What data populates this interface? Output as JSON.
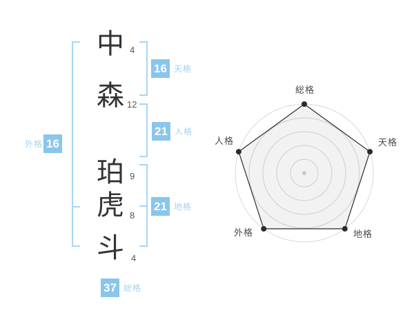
{
  "name_analysis": {
    "characters": [
      {
        "char": "中",
        "strokes": "4"
      },
      {
        "char": "森",
        "strokes": "12"
      },
      {
        "char": "珀",
        "strokes": "9"
      },
      {
        "char": "虎",
        "strokes": "8"
      },
      {
        "char": "斗",
        "strokes": "4"
      }
    ],
    "scores": {
      "tenkaku": {
        "value": "16",
        "label": "天格"
      },
      "jinkaku": {
        "value": "21",
        "label": "人格"
      },
      "chikaku": {
        "value": "21",
        "label": "地格"
      },
      "gaikaku": {
        "value": "16",
        "label": "外格"
      },
      "soukaku": {
        "value": "37",
        "label": "総格"
      }
    }
  },
  "chart_data": {
    "type": "radar",
    "axes": [
      {
        "label": "総格",
        "score": 37,
        "plot_value": 5
      },
      {
        "label": "天格",
        "score": 16,
        "plot_value": 5
      },
      {
        "label": "地格",
        "score": 21,
        "plot_value": 5
      },
      {
        "label": "外格",
        "score": 16,
        "plot_value": 5
      },
      {
        "label": "人格",
        "score": 21,
        "plot_value": 5
      }
    ],
    "max": 5,
    "rings": 5,
    "start_angle_deg": -90,
    "legend": "none",
    "grid": "circular"
  },
  "colors": {
    "badge_bg": "#89c6ec",
    "badge_text": "#ffffff",
    "label_blue": "#a5d3f0",
    "bracket_blue": "#a6d6f4",
    "kanji": "#333333",
    "stroke_num": "#555555",
    "ring": "#d9d9d9",
    "polygon_stroke": "#2b2b2b",
    "polygon_fill": "rgba(0,0,0,0.05)",
    "vertex_dot": "#2b2b2b",
    "center_dot": "#c8c8c8",
    "radar_label": "#4a4a4a"
  }
}
